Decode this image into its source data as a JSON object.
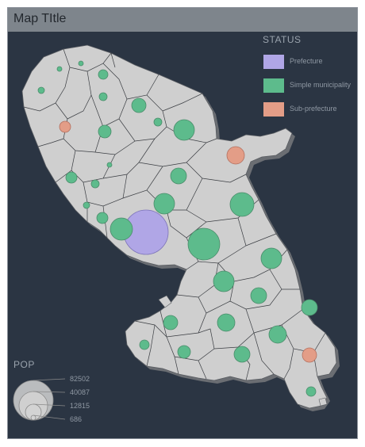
{
  "map": {
    "title": "Map TItle"
  },
  "colors": {
    "background": "#2b3543",
    "land": "#cfcfcf",
    "prefecture": "#b0a6e6",
    "simple_municipality": "#5dbb8c",
    "sub_prefecture": "#e39d87"
  },
  "legend_status": {
    "title": "STATUS",
    "items": [
      {
        "label": "Prefecture",
        "color": "#b0a6e6"
      },
      {
        "label": "Simple municipality",
        "color": "#5dbb8c"
      },
      {
        "label": "Sub-prefecture",
        "color": "#e39d87"
      }
    ]
  },
  "legend_pop": {
    "title": "POP",
    "values": [
      "82502",
      "40087",
      "12815",
      "686"
    ]
  }
}
